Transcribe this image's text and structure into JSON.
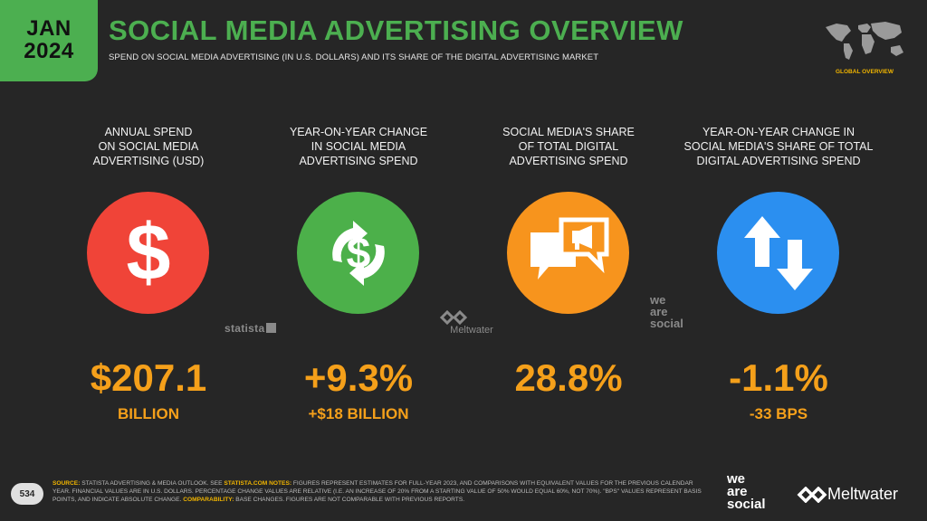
{
  "header": {
    "month": "JAN",
    "year": "2024",
    "title": "SOCIAL MEDIA ADVERTISING OVERVIEW",
    "subtitle": "SPEND ON SOCIAL MEDIA ADVERTISING (IN U.S. DOLLARS) AND ITS SHARE OF THE DIGITAL ADVERTISING MARKET",
    "map_label": "GLOBAL OVERVIEW"
  },
  "colors": {
    "accent_green": "#4caf50",
    "value_orange": "#f5a01a",
    "red": "#f04438",
    "green": "#4cb04a",
    "orange": "#f7941d",
    "blue": "#2b8ff0"
  },
  "metrics": [
    {
      "label_lines": [
        "ANNUAL SPEND",
        "ON SOCIAL MEDIA",
        "ADVERTISING (USD)"
      ],
      "icon": "dollar-icon",
      "value": "$207.1",
      "sub_value": "BILLION"
    },
    {
      "label_lines": [
        "YEAR-ON-YEAR CHANGE",
        "IN SOCIAL MEDIA",
        "ADVERTISING SPEND"
      ],
      "icon": "dollar-exchange-icon",
      "value": "+9.3%",
      "sub_value": "+$18 BILLION"
    },
    {
      "label_lines": [
        "SOCIAL MEDIA'S SHARE",
        "OF TOTAL DIGITAL",
        "ADVERTISING SPEND"
      ],
      "icon": "megaphone-chat-icon",
      "value": "28.8%",
      "sub_value": ""
    },
    {
      "label_lines": [
        "YEAR-ON-YEAR CHANGE IN",
        "SOCIAL MEDIA'S SHARE OF TOTAL",
        "DIGITAL ADVERTISING SPEND"
      ],
      "icon": "up-down-arrows-icon",
      "value": "-1.1%",
      "sub_value": "-33 BPS"
    }
  ],
  "source_logos": {
    "statista": "statista",
    "meltwater": "Meltwater",
    "wesocial": [
      "we",
      "are",
      "social"
    ]
  },
  "footer": {
    "page_number": "534",
    "source_label": "SOURCE:",
    "source_text": " STATISTA ADVERTISING & MEDIA OUTLOOK. SEE ",
    "source_link": "STATISTA.COM",
    "notes_label": " NOTES:",
    "notes_text": " FIGURES REPRESENT ESTIMATES FOR FULL-YEAR 2023, AND COMPARISONS WITH EQUIVALENT VALUES FOR THE PREVIOUS CALENDAR YEAR. FINANCIAL VALUES ARE IN U.S. DOLLARS. PERCENTAGE CHANGE VALUES ARE RELATIVE (I.E. AN INCREASE OF 20% FROM A STARTING VALUE OF 50% WOULD EQUAL 60%, NOT 70%). \"BPS\" VALUES REPRESENT BASIS POINTS, AND INDICATE ABSOLUTE CHANGE.",
    "comparability_label": " COMPARABILITY:",
    "comparability_text": " BASE CHANGES. FIGURES ARE NOT COMPARABLE WITH PREVIOUS REPORTS.",
    "brand_wesocial": [
      "we",
      "are",
      "social"
    ],
    "brand_meltwater": "Meltwater"
  }
}
